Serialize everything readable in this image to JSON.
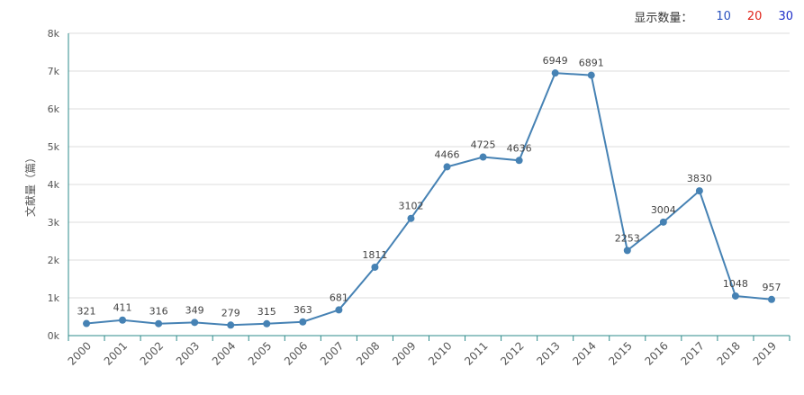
{
  "controls": {
    "label": "显示数量：",
    "options": [
      {
        "value": "10",
        "color": "#2a52be"
      },
      {
        "value": "20",
        "color": "#e0251b"
      },
      {
        "value": "30",
        "color": "#1f2fc9"
      }
    ]
  },
  "chart_data": {
    "type": "line",
    "title": "",
    "xlabel": "",
    "ylabel": "文献量（篇）",
    "categories": [
      "2000",
      "2001",
      "2002",
      "2003",
      "2004",
      "2005",
      "2006",
      "2007",
      "2008",
      "2009",
      "2010",
      "2011",
      "2012",
      "2013",
      "2014",
      "2015",
      "2016",
      "2017",
      "2018",
      "2019"
    ],
    "series": [
      {
        "values": [
          321,
          411,
          316,
          349,
          279,
          315,
          363,
          681,
          1811,
          3102,
          4466,
          4725,
          4636,
          6949,
          6891,
          2253,
          3004,
          3830,
          1048,
          957
        ]
      }
    ],
    "data_labels": [
      "321",
      "411",
      "316",
      "349",
      "279",
      "315",
      "363",
      "681",
      "1811",
      "3102",
      "4466",
      "4725",
      "4636",
      "6949",
      "6891",
      "2253",
      "3004",
      "3830",
      "1048",
      "957"
    ],
    "ylim": [
      0,
      8000
    ],
    "yticks": [
      0,
      1000,
      2000,
      3000,
      4000,
      5000,
      6000,
      7000,
      8000
    ],
    "ytick_labels": [
      "0k",
      "1k",
      "2k",
      "3k",
      "4k",
      "5k",
      "6k",
      "7k",
      "8k"
    ],
    "grid": true,
    "colors": {
      "line": "#4682b4",
      "axis": "#2e8b8b",
      "grid": "#dddddd"
    }
  }
}
